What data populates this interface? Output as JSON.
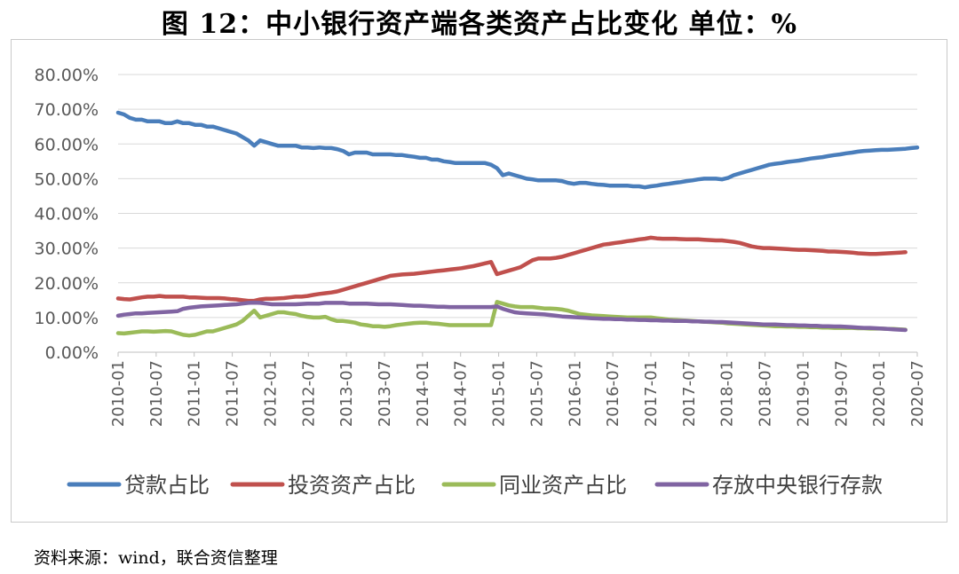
{
  "title": "图 12：中小银行资产端各类资产占比变化 单位：%",
  "source": "资料来源：wind，联合资信整理",
  "chart_data": {
    "type": "line",
    "ylim": [
      0,
      80
    ],
    "yticks": [
      "0.00%",
      "10.00%",
      "20.00%",
      "30.00%",
      "40.00%",
      "50.00%",
      "60.00%",
      "70.00%",
      "80.00%"
    ],
    "xticks": [
      "2010-01",
      "2010-07",
      "2011-01",
      "2011-07",
      "2012-01",
      "2012-07",
      "2013-01",
      "2013-07",
      "2014-01",
      "2014-07",
      "2015-01",
      "2015-07",
      "2016-01",
      "2016-07",
      "2017-01",
      "2017-07",
      "2018-01",
      "2018-07",
      "2019-01",
      "2019-07",
      "2020-01",
      "2020-07"
    ],
    "grid": true,
    "legend": "bottom",
    "series": [
      {
        "name": "贷款占比",
        "color": "#4a7ebb",
        "values": [
          69,
          68.5,
          67.5,
          67,
          67,
          66.5,
          66.5,
          66.5,
          66,
          66,
          66.5,
          66,
          66,
          65.5,
          65.5,
          65,
          65,
          64.5,
          64,
          63.5,
          63,
          62,
          61,
          59.5,
          61,
          60.5,
          60,
          59.5,
          59.5,
          59.5,
          59.5,
          59,
          59,
          58.8,
          59,
          58.8,
          58.8,
          58.5,
          58,
          57,
          57.5,
          57.5,
          57.5,
          57,
          57,
          57,
          57,
          56.8,
          56.8,
          56.5,
          56.3,
          56,
          56,
          55.5,
          55.5,
          55,
          54.8,
          54.5,
          54.5,
          54.5,
          54.5,
          54.5,
          54.5,
          54,
          53,
          51,
          51.5,
          51,
          50.5,
          50,
          49.8,
          49.5,
          49.5,
          49.5,
          49.5,
          49.3,
          48.8,
          48.5,
          48.8,
          48.8,
          48.5,
          48.3,
          48.2,
          48,
          48,
          48,
          48,
          47.8,
          47.8,
          47.5,
          47.8,
          48,
          48.3,
          48.5,
          48.8,
          49,
          49.3,
          49.5,
          49.8,
          50,
          50,
          50,
          49.8,
          50.2,
          51,
          51.5,
          52,
          52.5,
          53,
          53.5,
          54,
          54.3,
          54.5,
          54.8,
          55,
          55.2,
          55.5,
          55.8,
          56,
          56.2,
          56.5,
          56.8,
          57,
          57.3,
          57.5,
          57.8,
          58,
          58.1,
          58.2,
          58.3,
          58.3,
          58.4,
          58.5,
          58.6,
          58.8,
          59
        ]
      },
      {
        "name": "投资资产占比",
        "color": "#c0504d",
        "values": [
          15.5,
          15.3,
          15.2,
          15.5,
          15.8,
          16,
          16,
          16.2,
          16,
          16,
          16,
          16,
          15.8,
          15.8,
          15.7,
          15.6,
          15.6,
          15.6,
          15.5,
          15.3,
          15.2,
          15,
          14.8,
          14.8,
          15.2,
          15.4,
          15.4,
          15.5,
          15.6,
          15.8,
          16,
          16,
          16.2,
          16.5,
          16.8,
          17,
          17.2,
          17.5,
          18,
          18.5,
          19,
          19.5,
          20,
          20.5,
          21,
          21.5,
          22,
          22.2,
          22.4,
          22.5,
          22.6,
          22.8,
          23,
          23.2,
          23.4,
          23.6,
          23.8,
          24,
          24.2,
          24.5,
          24.8,
          25.2,
          25.6,
          26,
          22.5,
          23,
          23.5,
          24,
          24.5,
          25.5,
          26.5,
          27,
          27,
          27,
          27.2,
          27.5,
          28,
          28.5,
          29,
          29.5,
          30,
          30.5,
          31,
          31.2,
          31.5,
          31.7,
          32,
          32.2,
          32.5,
          32.7,
          33,
          32.8,
          32.7,
          32.7,
          32.7,
          32.6,
          32.5,
          32.5,
          32.5,
          32.4,
          32.3,
          32.2,
          32.2,
          32,
          31.8,
          31.5,
          31,
          30.5,
          30.2,
          30,
          30,
          29.9,
          29.8,
          29.7,
          29.6,
          29.5,
          29.5,
          29.4,
          29.3,
          29.2,
          29,
          29,
          28.9,
          28.8,
          28.7,
          28.5,
          28.4,
          28.3,
          28.3,
          28.4,
          28.5,
          28.6,
          28.7,
          28.8
        ]
      },
      {
        "name": "同业资产占比",
        "color": "#9bbb59",
        "values": [
          5.5,
          5.4,
          5.6,
          5.8,
          6,
          6,
          5.9,
          6,
          6.1,
          6,
          5.5,
          5,
          4.8,
          5,
          5.5,
          6,
          6,
          6.5,
          7,
          7.5,
          8,
          9,
          10.5,
          12,
          10,
          10.5,
          11,
          11.5,
          11.5,
          11.2,
          11,
          10.5,
          10.2,
          10,
          10,
          10.2,
          9.5,
          9,
          9,
          8.8,
          8.5,
          8,
          7.8,
          7.5,
          7.5,
          7.3,
          7.5,
          7.8,
          8,
          8.2,
          8.4,
          8.5,
          8.5,
          8.3,
          8.2,
          8,
          7.8,
          7.8,
          7.8,
          7.8,
          7.8,
          7.8,
          7.8,
          7.8,
          14.5,
          14,
          13.5,
          13.2,
          13,
          13,
          13,
          12.8,
          12.6,
          12.6,
          12.5,
          12.3,
          12,
          11.5,
          11,
          10.8,
          10.6,
          10.5,
          10.4,
          10.3,
          10.2,
          10.1,
          10,
          10,
          10,
          10,
          10,
          9.8,
          9.6,
          9.4,
          9.3,
          9.2,
          9.1,
          9,
          8.9,
          8.8,
          8.7,
          8.6,
          8.5,
          8.3,
          8.2,
          8.1,
          8,
          7.9,
          7.8,
          7.7,
          7.6,
          7.5,
          7.5,
          7.4,
          7.4,
          7.3,
          7.3,
          7.2,
          7.2,
          7.1,
          7.1,
          7,
          7,
          7,
          7,
          6.9,
          6.9,
          6.8,
          6.8,
          6.8,
          6.7,
          6.7,
          6.6,
          6.5
        ]
      },
      {
        "name": "存放中央银行存款",
        "color": "#8064a2",
        "values": [
          10.5,
          10.8,
          11,
          11.2,
          11.2,
          11.3,
          11.4,
          11.5,
          11.6,
          11.7,
          11.8,
          12.5,
          12.8,
          13,
          13.2,
          13.3,
          13.4,
          13.5,
          13.6,
          13.7,
          13.8,
          14,
          14.2,
          14.3,
          14.2,
          14,
          13.8,
          13.8,
          13.8,
          13.8,
          13.8,
          13.9,
          14,
          14,
          14,
          14.2,
          14.2,
          14.2,
          14.2,
          14,
          14,
          14,
          14,
          13.9,
          13.8,
          13.8,
          13.8,
          13.7,
          13.6,
          13.5,
          13.4,
          13.4,
          13.3,
          13.2,
          13.1,
          13.1,
          13,
          13,
          13,
          13,
          13,
          13,
          13,
          13,
          13.2,
          12.5,
          12,
          11.5,
          11.3,
          11.2,
          11.1,
          11,
          10.9,
          10.7,
          10.5,
          10.3,
          10.2,
          10.1,
          10,
          9.9,
          9.8,
          9.7,
          9.6,
          9.6,
          9.5,
          9.5,
          9.4,
          9.4,
          9.3,
          9.3,
          9.2,
          9.2,
          9.1,
          9.1,
          9,
          9,
          9,
          8.9,
          8.9,
          8.8,
          8.8,
          8.7,
          8.7,
          8.6,
          8.5,
          8.4,
          8.3,
          8.2,
          8.1,
          8,
          8,
          8,
          7.9,
          7.8,
          7.8,
          7.7,
          7.7,
          7.6,
          7.6,
          7.5,
          7.5,
          7.4,
          7.4,
          7.3,
          7.2,
          7.1,
          7,
          7,
          6.9,
          6.8,
          6.7,
          6.6,
          6.5,
          6.4
        ]
      }
    ]
  }
}
